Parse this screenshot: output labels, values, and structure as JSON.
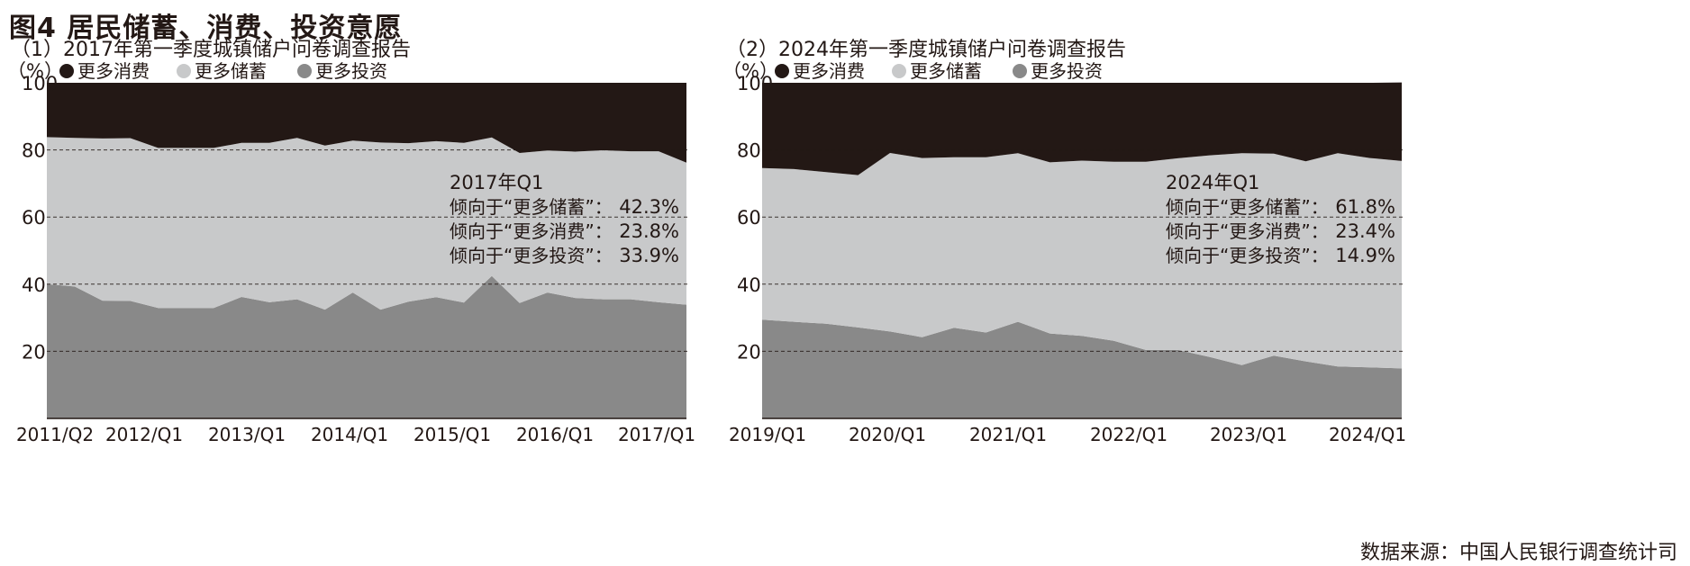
{
  "figure_title": "图4 居民储蓄、消费、投资意愿",
  "source_note": "数据来源：中国人民银行调查统计司",
  "legend": {
    "unit": "（%）",
    "items": [
      {
        "label": "更多消费",
        "color": "#231815"
      },
      {
        "label": "更多储蓄",
        "color": "#c8c9ca"
      },
      {
        "label": "更多投资",
        "color": "#898989"
      }
    ]
  },
  "colors": {
    "consume": "#231815",
    "save": "#c8c9ca",
    "invest": "#898989",
    "grid": "#231815"
  },
  "chart_data": [
    {
      "type": "area",
      "stacked": true,
      "title": "（1）2017年第一季度城镇储户问卷调查报告",
      "xlabel": "",
      "ylabel": "（%）",
      "ylim": [
        0,
        100
      ],
      "yticks": [
        20,
        40,
        60,
        80,
        100
      ],
      "grid": "horizontal dashed",
      "legend_position": "top-left",
      "x": [
        "2011/Q2",
        "2011/Q3",
        "2011/Q4",
        "2012/Q1",
        "2012/Q2",
        "2012/Q3",
        "2012/Q4",
        "2013/Q1",
        "2013/Q2",
        "2013/Q3",
        "2013/Q4",
        "2014/Q1",
        "2014/Q2",
        "2014/Q3",
        "2014/Q4",
        "2015/Q1",
        "2015/Q2",
        "2015/Q3",
        "2015/Q4",
        "2016/Q1",
        "2016/Q2",
        "2016/Q3",
        "2016/Q4",
        "2017/Q1"
      ],
      "xtick_labels": [
        "2011/Q2",
        "2012/Q1",
        "2013/Q1",
        "2014/Q1",
        "2015/Q1",
        "2016/Q1",
        "2017/Q1"
      ],
      "series": [
        {
          "name": "更多投资",
          "values": [
            40,
            39.3,
            35.1,
            35,
            32.9,
            32.9,
            32.9,
            36.2,
            34.6,
            35.5,
            32.4,
            37.5,
            32.4,
            34.8,
            36.1,
            34.5,
            42.4,
            34.4,
            37.5,
            35.9,
            35.5,
            35.5,
            34.6,
            33.9
          ]
        },
        {
          "name": "更多储蓄",
          "values": [
            43.8,
            44.3,
            48.3,
            48.5,
            47.7,
            47.7,
            47.7,
            45.9,
            47.5,
            48.1,
            48.9,
            45.3,
            49.8,
            47.2,
            46.5,
            47.6,
            41.3,
            44.7,
            42.3,
            43.6,
            44.4,
            44.1,
            45,
            42.3
          ]
        },
        {
          "name": "更多消费",
          "values": [
            16.2,
            16.4,
            16.6,
            16.5,
            19.4,
            19.4,
            19.4,
            17.9,
            17.9,
            16.4,
            18.7,
            17.2,
            17.8,
            18,
            17.4,
            17.9,
            16.3,
            20.9,
            20.2,
            20.5,
            20.1,
            20.4,
            20.4,
            23.8
          ]
        }
      ],
      "annotation": {
        "title": "2017年Q1",
        "lines": [
          {
            "label": "倾向于“更多储蓄”：",
            "value": "42.3%"
          },
          {
            "label": "倾向于“更多消费”：",
            "value": "23.8%"
          },
          {
            "label": "倾向于“更多投资”：",
            "value": "33.9%"
          }
        ]
      }
    },
    {
      "type": "area",
      "stacked": true,
      "title": "（2）2024年第一季度城镇储户问卷调查报告",
      "xlabel": "",
      "ylabel": "（%）",
      "ylim": [
        0,
        100
      ],
      "yticks": [
        20,
        40,
        60,
        80,
        100
      ],
      "grid": "horizontal dashed",
      "legend_position": "top-left",
      "x": [
        "2019/Q1",
        "2019/Q2",
        "2019/Q3",
        "2019/Q4",
        "2020/Q1",
        "2020/Q2",
        "2020/Q3",
        "2020/Q4",
        "2021/Q1",
        "2021/Q2",
        "2021/Q3",
        "2021/Q4",
        "2022/Q1",
        "2022/Q2",
        "2022/Q3",
        "2022/Q4",
        "2023/Q1",
        "2023/Q2",
        "2023/Q3",
        "2023/Q4",
        "2024/Q1"
      ],
      "xtick_labels": [
        "2019/Q1",
        "2020/Q1",
        "2021/Q1",
        "2022/Q1",
        "2023/Q1",
        "2024/Q1"
      ],
      "series": [
        {
          "name": "更多投资",
          "values": [
            29.4,
            28.8,
            28.2,
            27.1,
            25.9,
            24.2,
            27,
            25.6,
            28.8,
            25.3,
            24.6,
            23.1,
            20.4,
            20.4,
            18.3,
            15.9,
            18.7,
            17,
            15.5,
            15.2,
            14.9
          ]
        },
        {
          "name": "更多储蓄",
          "values": [
            45.2,
            45.5,
            45.2,
            45.4,
            53.2,
            53.4,
            50.8,
            52.2,
            50.2,
            51,
            52.2,
            53.4,
            56.1,
            57.1,
            60.1,
            63.1,
            60.2,
            59.6,
            63.5,
            62.4,
            61.8
          ]
        },
        {
          "name": "更多消费",
          "values": [
            25.4,
            25.7,
            26.6,
            27.5,
            20.9,
            22.4,
            22.2,
            22.2,
            21,
            23.7,
            23.2,
            23.5,
            23.5,
            22.5,
            21.6,
            21,
            21.1,
            23.4,
            21,
            22.4,
            23.4
          ]
        }
      ],
      "annotation": {
        "title": "2024年Q1",
        "lines": [
          {
            "label": "倾向于“更多储蓄”：",
            "value": "61.8%"
          },
          {
            "label": "倾向于“更多消费”：",
            "value": "23.4%"
          },
          {
            "label": "倾向于“更多投资”：",
            "value": "14.9%"
          }
        ]
      }
    }
  ]
}
